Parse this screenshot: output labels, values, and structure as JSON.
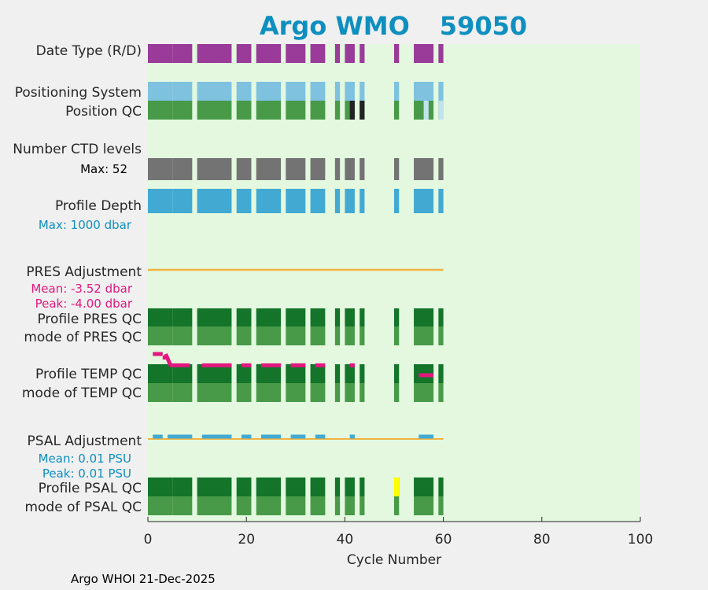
{
  "colors": {
    "background": "#f0f0f0",
    "plot_bg": "#e3f8df",
    "title": "#0e8fbf",
    "purple": "#9a3a99",
    "light_blue": "#7ec2e0",
    "medium_green": "#489a48",
    "dark_green": "#13742a",
    "gray": "#737373",
    "depth_blue": "#41a9d2",
    "orange": "#f2b241",
    "magenta": "#e3177f",
    "black": "#232323",
    "pale_blue": "#c0e3ee",
    "yellow": "#ffff00"
  },
  "chart_data": {
    "type": "timeline",
    "title": {
      "prefix": "Argo WMO",
      "wmo": "59050"
    },
    "xlabel": "Cycle Number",
    "xlim": [
      0,
      100
    ],
    "xticks": [
      "0",
      "20",
      "40",
      "60",
      "80",
      "100"
    ],
    "footer": "Argo WHOI 21-Dec-2025",
    "row_labels": {
      "date_type": "Date Type (R/D)",
      "positioning_system": "Positioning System",
      "position_qc": "Position QC",
      "number_ctd_levels": "Number CTD levels",
      "profile_depth": "Profile Depth",
      "pres_adjustment": "PRES Adjustment",
      "profile_pres_qc": "Profile PRES QC",
      "mode_pres_qc": "mode of PRES QC",
      "profile_temp_qc": "Profile TEMP QC",
      "mode_temp_qc": "mode of TEMP QC",
      "psal_adjustment": "PSAL Adjustment",
      "profile_psal_qc": "Profile PSAL QC",
      "mode_psal_qc": "mode of PSAL QC"
    },
    "annotations": {
      "ctd_max": "Max: 52",
      "depth_max": "Max: 1000 dbar",
      "pres_mean": "Mean: -3.52 dbar",
      "pres_peak": "Peak: -4.00 dbar",
      "psal_mean": "Mean: 0.01 PSU",
      "psal_peak": "Peak: 0.01 PSU"
    },
    "cycle_ranges": [
      [
        0,
        5
      ],
      [
        5,
        9
      ],
      [
        10,
        17
      ],
      [
        18,
        21
      ],
      [
        22,
        27
      ],
      [
        28,
        32
      ],
      [
        33,
        36
      ],
      [
        38,
        39
      ],
      [
        40,
        42
      ],
      [
        43,
        44
      ],
      [
        50,
        51
      ],
      [
        54,
        58
      ],
      [
        59,
        60
      ]
    ],
    "position_qc_overrides": [
      {
        "cycle": 41,
        "color": "black"
      },
      {
        "cycle": 43,
        "color": "black"
      },
      {
        "cycle": 56,
        "color": "pale_blue"
      },
      {
        "cycle": 59,
        "color": "pale_blue"
      }
    ],
    "psal_qc_overrides": [
      {
        "cycle": 50,
        "color": "yellow"
      }
    ],
    "ctd_levels_partial": {
      "cycle_from": 6,
      "cycle_to": 9,
      "fraction": 0.85
    },
    "depth_partial": {
      "cycle_from": 6,
      "cycle_to": 9,
      "fraction": 0.85
    },
    "pres_adjustment_line": {
      "from": 0,
      "to": 60,
      "value": 0
    },
    "temp_adjustment_segments": [
      {
        "cycles": [
          1,
          3
        ],
        "level": 1.0
      },
      {
        "cycles": [
          3,
          4
        ],
        "level": 0.75
      },
      {
        "cycles": [
          4.5,
          8.5
        ],
        "level": 0.2
      },
      {
        "cycles": [
          11,
          17
        ],
        "level": 0.2
      },
      {
        "cycles": [
          19,
          21
        ],
        "level": 0.2
      },
      {
        "cycles": [
          23,
          27
        ],
        "level": 0.2
      },
      {
        "cycles": [
          29,
          32
        ],
        "level": 0.2
      },
      {
        "cycles": [
          34,
          36
        ],
        "level": 0.2
      },
      {
        "cycles": [
          41,
          42
        ],
        "level": 0.2
      },
      {
        "cycles": [
          55,
          58
        ],
        "level": -0.5
      }
    ],
    "psal_adjustment_line": {
      "from": 0,
      "to": 60,
      "value": 0
    },
    "psal_adjustment_segments": [
      [
        1,
        3
      ],
      [
        4,
        9
      ],
      [
        11,
        17
      ],
      [
        19,
        21
      ],
      [
        23,
        27
      ],
      [
        29,
        32
      ],
      [
        34,
        36
      ],
      [
        41,
        42
      ],
      [
        55,
        58
      ]
    ]
  }
}
